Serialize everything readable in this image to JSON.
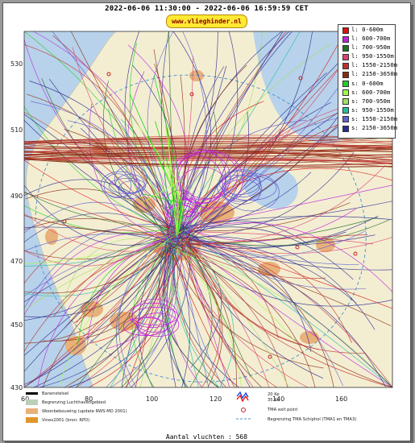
{
  "title": "2022-06-06 11:30:00 - 2022-06-06 16:59:59 CET",
  "watermark": "www.vlieghinder.nl",
  "axes": {
    "y_ticks": [
      "530",
      "510",
      "490",
      "470",
      "450",
      "430"
    ],
    "x_ticks": [
      "60",
      "80",
      "100",
      "120",
      "140",
      "160"
    ]
  },
  "legend": [
    {
      "label": "l: 0-600m",
      "color": "#e01010"
    },
    {
      "label": "l: 600-700m",
      "color": "#c020e0"
    },
    {
      "label": "l: 700-950m",
      "color": "#207020"
    },
    {
      "label": "l: 950-1550m",
      "color": "#e04070"
    },
    {
      "label": "l: 1550-2150m",
      "color": "#c03030"
    },
    {
      "label": "l: 2150-3650m",
      "color": "#8b2a10"
    },
    {
      "label": "s: 0-600m",
      "color": "#20d020"
    },
    {
      "label": "s: 600-700m",
      "color": "#a0ff40"
    },
    {
      "label": "s: 700-950m",
      "color": "#a0e060"
    },
    {
      "label": "s: 950-1550m",
      "color": "#20c0a0"
    },
    {
      "label": "s: 1550-2150m",
      "color": "#6060d0"
    },
    {
      "label": "s: 2150-3650m",
      "color": "#2a2a90"
    }
  ],
  "map_legend": {
    "runway": "Banenstelsel",
    "airport_boundary": "Begrenzing Luchthavengebied",
    "housing": "Woonbebouwing (update RWS-MD 2001)",
    "vinex": "Vinex2001 (bron: RPD)",
    "noise_20": "20 Ke",
    "noise_35": "35 Ke",
    "tma_exit": "TMA exit point",
    "tma_boundary": "Begrenzing TMA Schiphol  (TMA1 en TMA3)"
  },
  "colors": {
    "sea": "#b7d2ea",
    "land": "#f3eed2",
    "urban": "#e8b07a",
    "airport": "#b9cfb9"
  },
  "footer": "Aantal vluchten : 568"
}
